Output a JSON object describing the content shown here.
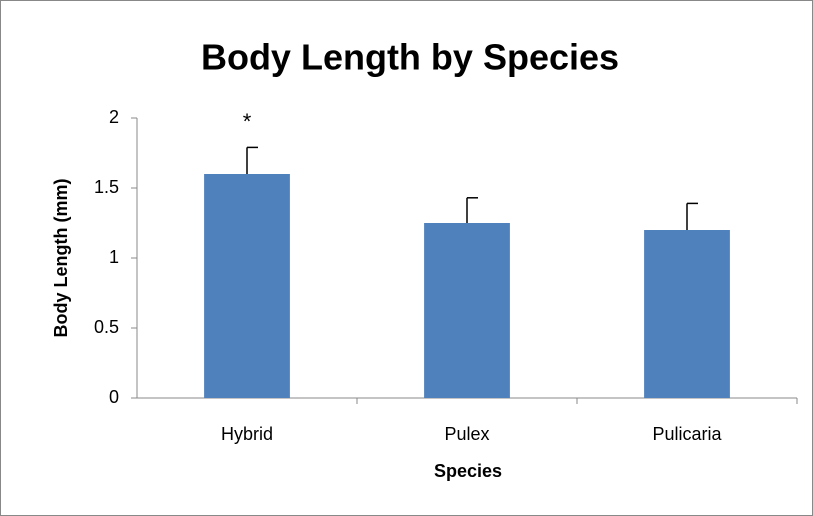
{
  "chart_data": {
    "type": "bar",
    "title": "Body Length by Species",
    "x_label": "Species",
    "y_label": "Body Length (mm)",
    "categories": [
      "Hybrid",
      "Pulex",
      "Pulicaria"
    ],
    "values": [
      1.6,
      1.25,
      1.2
    ],
    "errors": [
      0.19,
      0.18,
      0.19
    ],
    "color": "#4f81bd",
    "annotations": [
      {
        "text": "*",
        "x": "Hybrid"
      }
    ],
    "ylim": [
      0,
      2
    ],
    "yticks": [
      0,
      0.5,
      1,
      1.5,
      2
    ],
    "grid": false
  }
}
